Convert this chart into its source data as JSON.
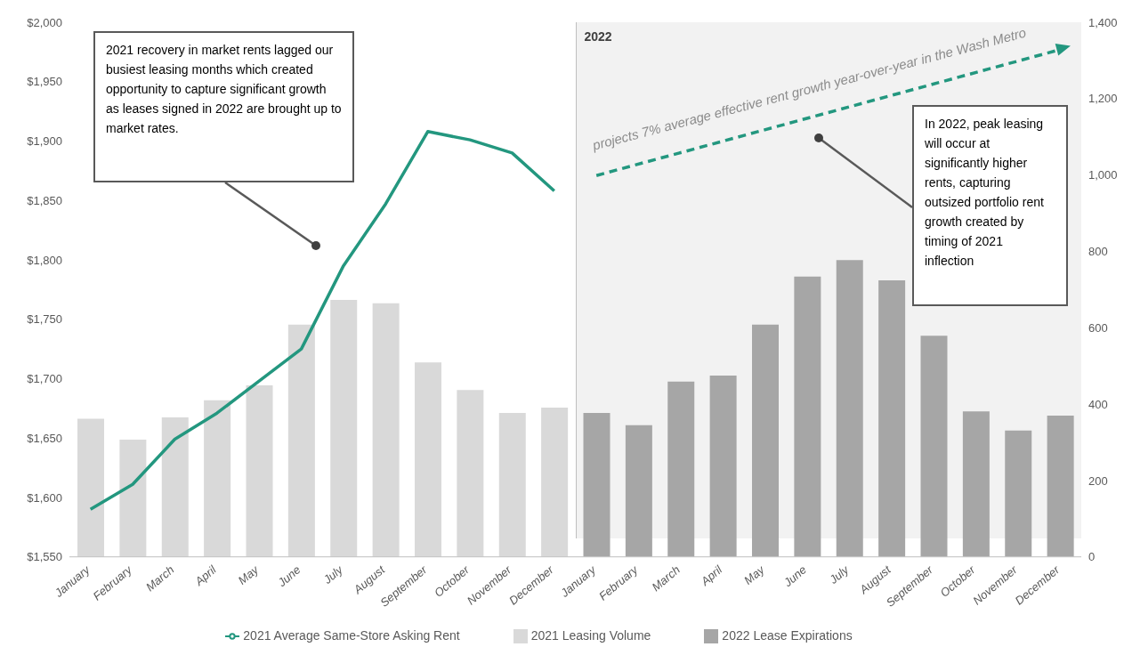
{
  "chart_data": {
    "type": "bar",
    "stacked": true,
    "categories": [
      "January",
      "February",
      "March",
      "April",
      "May",
      "June",
      "July",
      "August",
      "September",
      "October",
      "November",
      "December",
      "January",
      "February",
      "March",
      "April",
      "May",
      "June",
      "July",
      "August",
      "September",
      "October",
      "November",
      "December"
    ],
    "series": [
      {
        "name": "2021 Average Same-Store Asking Rent",
        "type": "line",
        "color": "#23977f",
        "values": [
          1590,
          1611,
          1649,
          1671,
          1698,
          1725,
          1795,
          1847,
          1908,
          1901,
          1890,
          1858,
          null,
          null,
          null,
          null,
          null,
          null,
          null,
          null,
          null,
          null,
          null,
          null
        ]
      },
      {
        "type": "line",
        "color": "#23977f",
        "line_style": "dashed",
        "values": [
          null,
          null,
          null,
          null,
          null,
          null,
          null,
          null,
          null,
          null,
          null,
          null,
          1871,
          null,
          null,
          null,
          null,
          null,
          null,
          null,
          null,
          null,
          null,
          1977
        ]
      },
      {
        "name": "2021 Leasing Volume",
        "axis": "y2",
        "color": "#d9d9d9",
        "values": [
          362,
          307,
          365,
          410,
          449,
          608,
          673,
          664,
          509,
          437,
          377,
          391,
          null,
          null,
          null,
          null,
          null,
          null,
          null,
          null,
          null,
          null,
          null,
          null
        ]
      },
      {
        "name": "2022 Lease Expirations",
        "axis": "y2",
        "color": "#a6a6a6",
        "values": [
          null,
          null,
          null,
          null,
          null,
          null,
          null,
          null,
          null,
          null,
          null,
          null,
          377,
          345,
          459,
          475,
          608,
          734,
          777,
          724,
          579,
          381,
          331,
          370
        ]
      }
    ],
    "ylim": [
      1550,
      2000
    ],
    "yticks": [
      {
        "value": 1550,
        "label": "$1,550"
      },
      {
        "value": 1600,
        "label": "$1,600"
      },
      {
        "value": 1650,
        "label": "$1,650"
      },
      {
        "value": 1700,
        "label": "$1,700"
      },
      {
        "value": 1750,
        "label": "$1,750"
      },
      {
        "value": 1800,
        "label": "$1,800"
      },
      {
        "value": 1850,
        "label": "$1,850"
      },
      {
        "value": 1900,
        "label": "$1,900"
      },
      {
        "value": 1950,
        "label": "$1,950"
      },
      {
        "value": 2000,
        "label": "$2,000"
      }
    ],
    "y2lim": [
      0,
      1400
    ],
    "y2ticks": [
      0,
      200,
      400,
      600,
      800,
      {
        "value": 1000,
        "label": "1,000"
      },
      {
        "value": 1200,
        "label": "1,200"
      },
      {
        "value": 1400,
        "label": "1,400"
      }
    ],
    "annotations": [
      "2021 recovery in market rents lagged our busiest leasing months which created opportunity to capture significant growth as leases signed in 2022 are brought up to market rates.",
      "projects 7% average effective rent growth year-over-year in the Wash Metro",
      "In 2022, peak leasing will occur at significantly higher rents, capturing outsized portfolio rent growth created by timing of 2021 inflection",
      "2022"
    ],
    "grid": false,
    "legend": "bottom"
  }
}
